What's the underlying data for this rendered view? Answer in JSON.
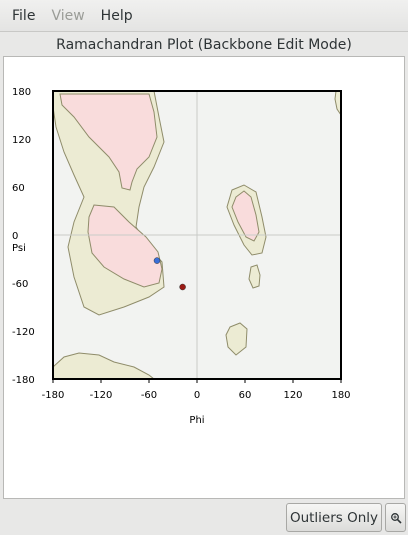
{
  "menubar": {
    "items": [
      {
        "label": "File",
        "enabled": true
      },
      {
        "label": "View",
        "enabled": false
      },
      {
        "label": "Help",
        "enabled": true
      }
    ]
  },
  "title": "Ramachandran Plot (Backbone Edit Mode)",
  "plot": {
    "x_label": "Phi",
    "y_label": "Psi",
    "x_ticks": [
      "-180",
      "-120",
      "-60",
      "0",
      "60",
      "120",
      "180"
    ],
    "y_ticks": [
      "180",
      "120",
      "60",
      "0",
      "-60",
      "-120",
      "-180"
    ]
  },
  "chart_data": {
    "type": "scatter",
    "title": "",
    "xlabel": "Phi",
    "ylabel": "Psi",
    "xlim": [
      -180,
      180
    ],
    "ylim": [
      -180,
      180
    ],
    "grid": "zero lines only",
    "points": [
      {
        "phi": -50,
        "psi": -32,
        "color": "#3a6fd8"
      },
      {
        "phi": -18,
        "psi": -65,
        "color": "#9a1a14"
      }
    ],
    "colors": {
      "favored": "#f9dcdc",
      "allowed": "#ecebd3",
      "background": "#f2f3f1",
      "contour": "#8f8c6a"
    }
  },
  "footer": {
    "outliers_label": "Outliers Only",
    "zoom_icon": "zoom-icon"
  }
}
